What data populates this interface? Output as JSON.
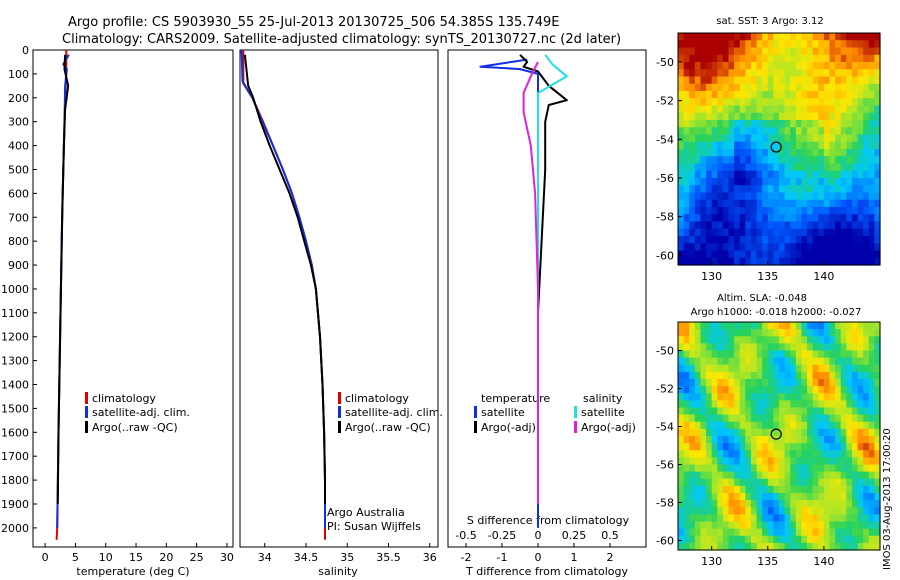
{
  "title_line1": "Argo profile: CS 5903930_55 25-Jul-2013 20130725_506 54.385S 135.749E",
  "title_line2": "Climatology: CARS2009. Satellite-adjusted climatology: synTS_20130727.nc (2d later)",
  "side_stamp": "IMOS 03-Aug-2013 17:00:20",
  "colors": {
    "clim": "#e00000",
    "sat": "#1030e0",
    "argo": "#000000",
    "sat_sal": "#20e0e0",
    "argo_sal": "#e020e0"
  },
  "chart_data": [
    {
      "type": "line",
      "id": "temperature",
      "xlabel": "temperature (deg C)",
      "xlim": [
        -2,
        31
      ],
      "xticks": [
        0,
        5,
        10,
        15,
        20,
        25,
        30
      ],
      "ylim": [
        2080,
        0
      ],
      "yticks": [
        0,
        100,
        200,
        300,
        400,
        500,
        600,
        700,
        800,
        900,
        1000,
        1100,
        1200,
        1300,
        1400,
        1500,
        1600,
        1700,
        1800,
        1900,
        2000
      ],
      "legend": [
        "climatology",
        "satellite-adj. clim.",
        "Argo(..raw -QC)"
      ],
      "series": [
        {
          "name": "climatology",
          "color_key": "clim",
          "points": [
            [
              3.5,
              0
            ],
            [
              3.5,
              60
            ],
            [
              3.4,
              150
            ],
            [
              3.2,
              300
            ],
            [
              3.0,
              500
            ],
            [
              2.8,
              700
            ],
            [
              2.6,
              1000
            ],
            [
              2.4,
              1300
            ],
            [
              2.2,
              1600
            ],
            [
              2.0,
              2000
            ],
            [
              1.9,
              2050
            ]
          ]
        },
        {
          "name": "satellite-adj. clim.",
          "color_key": "sat",
          "points": [
            [
              3.9,
              20
            ],
            [
              3.0,
              60
            ],
            [
              3.6,
              80
            ],
            [
              3.3,
              150
            ],
            [
              3.2,
              300
            ],
            [
              3.0,
              500
            ],
            [
              2.8,
              700
            ],
            [
              2.6,
              1000
            ],
            [
              2.4,
              1300
            ],
            [
              2.2,
              1600
            ],
            [
              2.0,
              2000
            ]
          ]
        },
        {
          "name": "Argo(..raw -QC)",
          "color_key": "argo",
          "points": [
            [
              3.3,
              20
            ],
            [
              3.2,
              80
            ],
            [
              3.8,
              150
            ],
            [
              3.3,
              250
            ],
            [
              3.1,
              400
            ],
            [
              2.9,
              600
            ],
            [
              2.6,
              1000
            ],
            [
              2.4,
              1300
            ],
            [
              2.2,
              1600
            ],
            [
              2.1,
              1900
            ]
          ]
        }
      ]
    },
    {
      "type": "line",
      "id": "salinity",
      "xlabel": "salinity",
      "xlim": [
        33.7,
        36.1
      ],
      "xticks": [
        34,
        34.5,
        35,
        35.5,
        36
      ],
      "ylim": [
        2080,
        0
      ],
      "legend": [
        "climatology",
        "satellite-adj. clim.",
        "Argo(..raw -QC)"
      ],
      "annotation": [
        "Argo Australia",
        "PI: Susan Wijffels"
      ],
      "series": [
        {
          "name": "climatology",
          "color_key": "clim",
          "points": [
            [
              33.74,
              0
            ],
            [
              33.74,
              140
            ],
            [
              33.85,
              200
            ],
            [
              33.98,
              300
            ],
            [
              34.1,
              400
            ],
            [
              34.22,
              500
            ],
            [
              34.33,
              600
            ],
            [
              34.42,
              700
            ],
            [
              34.5,
              800
            ],
            [
              34.57,
              900
            ],
            [
              34.62,
              1000
            ],
            [
              34.67,
              1200
            ],
            [
              34.7,
              1400
            ],
            [
              34.72,
              1600
            ],
            [
              34.73,
              1800
            ],
            [
              34.73,
              2050
            ]
          ]
        },
        {
          "name": "satellite-adj. clim.",
          "color_key": "sat",
          "points": [
            [
              33.72,
              0
            ],
            [
              33.73,
              130
            ],
            [
              33.85,
              200
            ],
            [
              33.97,
              300
            ],
            [
              34.1,
              400
            ],
            [
              34.22,
              500
            ],
            [
              34.33,
              600
            ],
            [
              34.42,
              700
            ],
            [
              34.5,
              800
            ],
            [
              34.57,
              900
            ],
            [
              34.62,
              1000
            ],
            [
              34.67,
              1200
            ],
            [
              34.7,
              1400
            ],
            [
              34.72,
              1600
            ],
            [
              34.73,
              1800
            ],
            [
              34.73,
              2000
            ]
          ]
        },
        {
          "name": "Argo(..raw -QC)",
          "color_key": "argo",
          "points": [
            [
              33.76,
              20
            ],
            [
              33.8,
              150
            ],
            [
              33.86,
              200
            ],
            [
              33.95,
              300
            ],
            [
              34.06,
              400
            ],
            [
              34.18,
              500
            ],
            [
              34.3,
              600
            ],
            [
              34.4,
              700
            ],
            [
              34.48,
              800
            ],
            [
              34.56,
              900
            ],
            [
              34.62,
              1000
            ],
            [
              34.67,
              1200
            ],
            [
              34.7,
              1400
            ],
            [
              34.72,
              1600
            ],
            [
              34.73,
              1800
            ],
            [
              34.73,
              1900
            ]
          ]
        }
      ]
    },
    {
      "type": "line",
      "id": "difference",
      "xlabel": "T difference from climatology",
      "top_label": "S difference from climatology",
      "xlim": [
        -2.5,
        3
      ],
      "xticks": [
        -2,
        -1,
        0,
        1,
        2
      ],
      "sxlim": [
        -0.625,
        0.75
      ],
      "sxticks": [
        -0.5,
        -0.25,
        0,
        0.25,
        0.5
      ],
      "ylim": [
        2080,
        0
      ],
      "legend_t_head": "temperature",
      "legend_s_head": "salinity",
      "legend_t": [
        "satellite",
        "Argo(-adj)"
      ],
      "legend_s": [
        "satellite",
        "Argo(-adj)"
      ],
      "series": [
        {
          "name": "T satellite",
          "color_key": "sat",
          "points": [
            [
              -0.3,
              40
            ],
            [
              -1.6,
              70
            ],
            [
              -0.5,
              80
            ],
            [
              0.0,
              100
            ],
            [
              0.0,
              2000
            ]
          ]
        },
        {
          "name": "T Argo(-adj)",
          "color_key": "argo",
          "points": [
            [
              -0.5,
              20
            ],
            [
              -0.3,
              50
            ],
            [
              -0.4,
              70
            ],
            [
              0.0,
              90
            ],
            [
              0.3,
              150
            ],
            [
              0.8,
              210
            ],
            [
              0.3,
              230
            ],
            [
              0.2,
              300
            ],
            [
              0.2,
              500
            ],
            [
              0.1,
              800
            ],
            [
              0.0,
              1100
            ],
            [
              0.0,
              1400
            ],
            [
              0.0,
              1900
            ]
          ]
        },
        {
          "name": "S satellite",
          "color_key": "sat_sal",
          "points": [
            [
              0.05,
              20
            ],
            [
              0.1,
              60
            ],
            [
              0.2,
              110
            ],
            [
              0.0,
              180
            ],
            [
              0.0,
              400
            ],
            [
              0.0,
              600
            ],
            [
              0.0,
              1000
            ],
            [
              0.0,
              1900
            ]
          ]
        },
        {
          "name": "S Argo(-adj)",
          "color_key": "argo_sal",
          "points": [
            [
              0.0,
              50
            ],
            [
              -0.05,
              110
            ],
            [
              -0.1,
              180
            ],
            [
              -0.1,
              260
            ],
            [
              -0.05,
              400
            ],
            [
              -0.02,
              600
            ],
            [
              0.0,
              1000
            ],
            [
              0.0,
              1900
            ]
          ]
        }
      ]
    }
  ],
  "maps": [
    {
      "id": "sst",
      "title": "sat. SST: 3 Argo: 3.12",
      "xlim": [
        127,
        145
      ],
      "ylim": [
        -60.5,
        -48.5
      ],
      "xticks": [
        130,
        135,
        140
      ],
      "yticks": [
        -50,
        -52,
        -54,
        -56,
        -58,
        -60
      ],
      "marker": [
        135.75,
        -54.4
      ]
    },
    {
      "id": "sla",
      "title_line1": "Altim. SLA: -0.048",
      "title_line2": "Argo h1000: -0.018 h2000: -0.027",
      "xlim": [
        127,
        145
      ],
      "ylim": [
        -60.5,
        -48.5
      ],
      "xticks": [
        130,
        135,
        140
      ],
      "yticks": [
        -50,
        -52,
        -54,
        -56,
        -58,
        -60
      ],
      "marker": [
        135.75,
        -54.4
      ]
    }
  ]
}
